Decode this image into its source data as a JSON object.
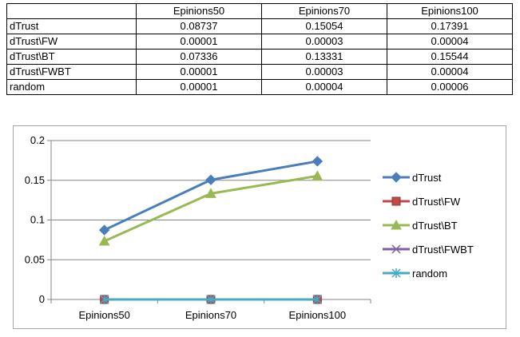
{
  "table": {
    "headers": [
      "",
      "Epinions50",
      "Epinions70",
      "Epinions100"
    ],
    "rows": [
      [
        "dTrust",
        "0.08737",
        "0.15054",
        "0.17391"
      ],
      [
        "dTrust\\FW",
        "0.00001",
        "0.00003",
        "0.00004"
      ],
      [
        "dTrust\\BT",
        "0.07336",
        "0.13331",
        "0.15544"
      ],
      [
        "dTrust\\FWBT",
        "0.00001",
        "0.00003",
        "0.00004"
      ],
      [
        "random",
        "0.00001",
        "0.00004",
        "0.00006"
      ]
    ]
  },
  "chart_data": {
    "type": "line",
    "categories": [
      "Epinions50",
      "Epinions70",
      "Epinions100"
    ],
    "series": [
      {
        "name": "dTrust",
        "values": [
          0.08737,
          0.15054,
          0.17391
        ],
        "color": "#4a7ebb",
        "marker": "diamond"
      },
      {
        "name": "dTrust\\FW",
        "values": [
          1e-05,
          3e-05,
          4e-05
        ],
        "color": "#be4b48",
        "marker": "square"
      },
      {
        "name": "dTrust\\BT",
        "values": [
          0.07336,
          0.13331,
          0.15544
        ],
        "color": "#98b954",
        "marker": "triangle"
      },
      {
        "name": "dTrust\\FWBT",
        "values": [
          1e-05,
          3e-05,
          4e-05
        ],
        "color": "#7d60a0",
        "marker": "x"
      },
      {
        "name": "random",
        "values": [
          1e-05,
          4e-05,
          6e-05
        ],
        "color": "#46aac5",
        "marker": "star"
      }
    ],
    "yticks": [
      "0",
      "0.05",
      "0.1",
      "0.15",
      "0.2"
    ],
    "ylim": [
      0,
      0.2
    ],
    "grid": true,
    "legend": "right"
  }
}
